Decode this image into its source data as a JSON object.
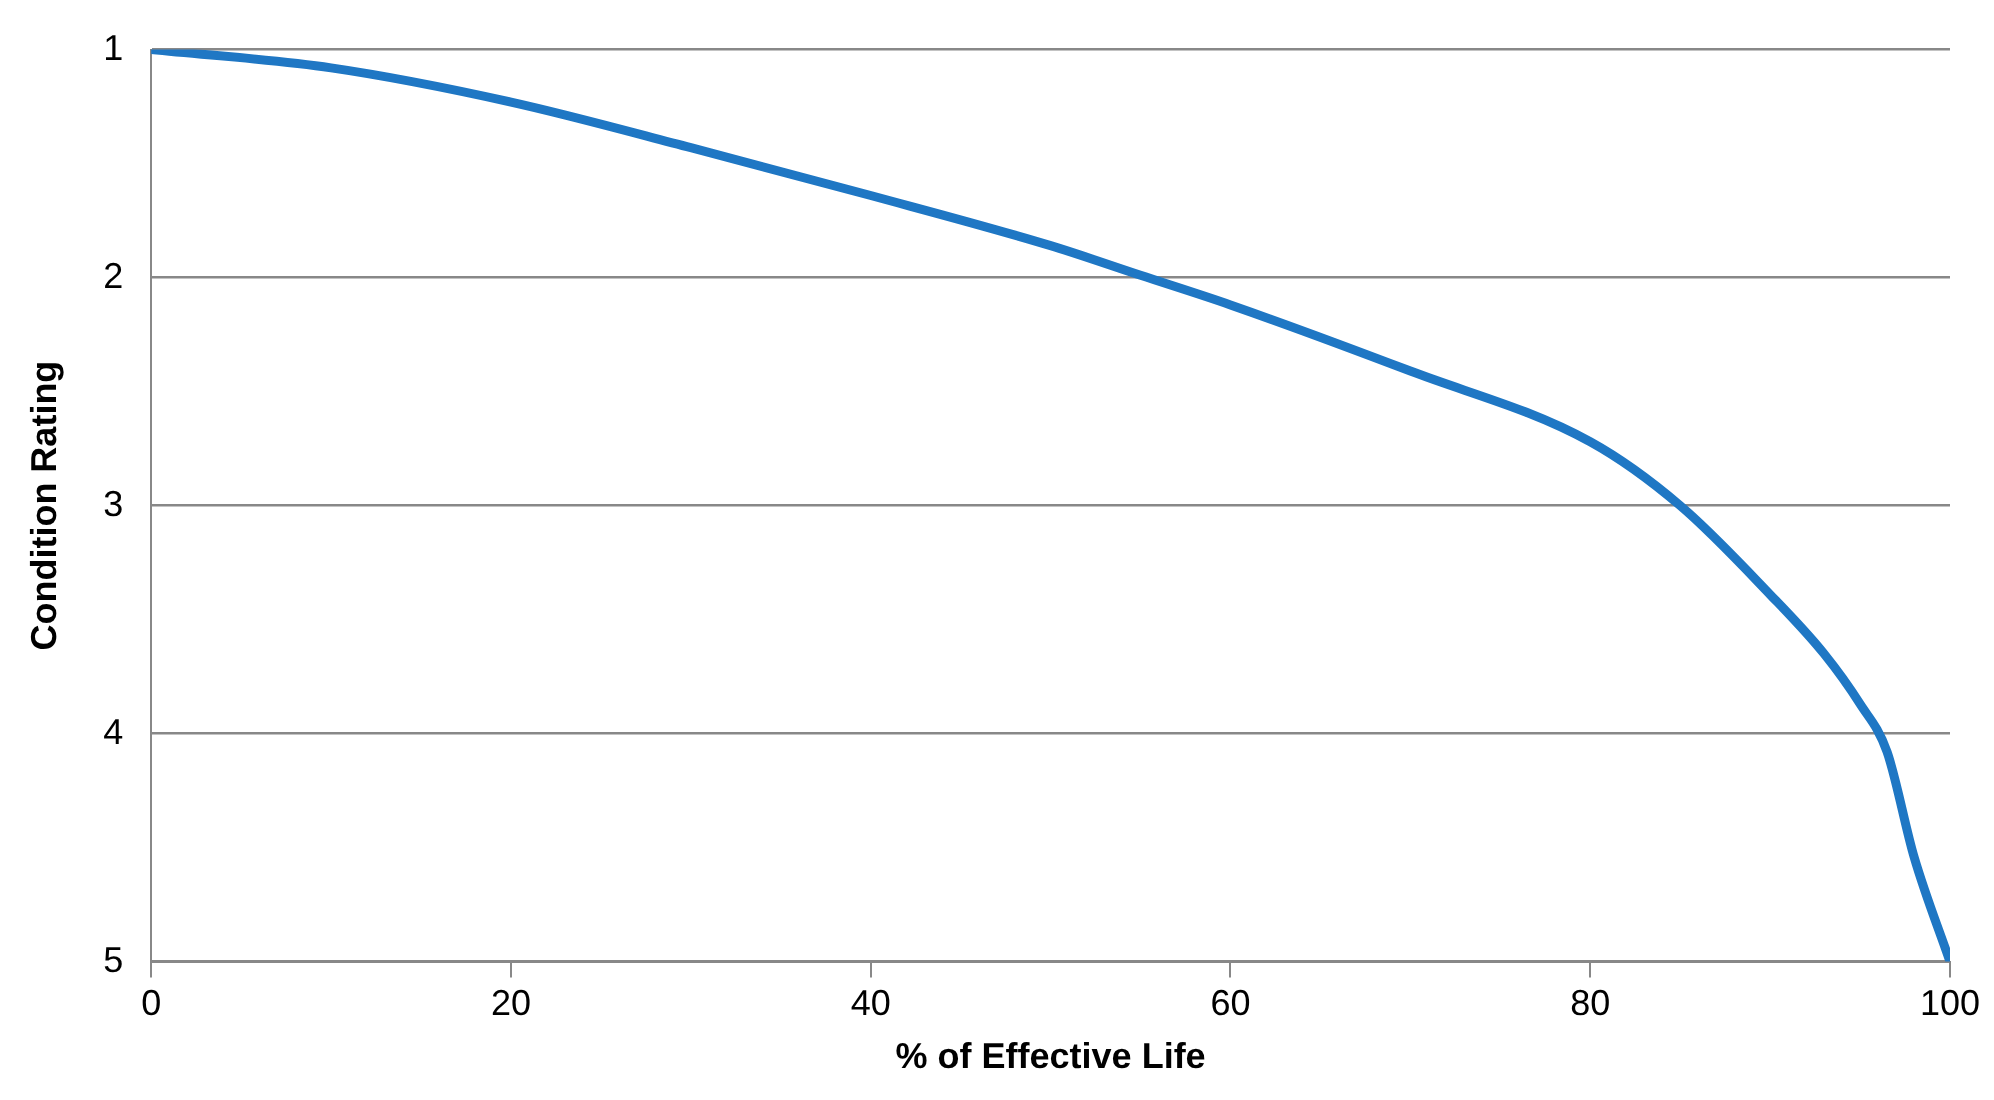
{
  "chart_data": {
    "type": "line",
    "xlabel": "% of Effective Life",
    "ylabel": "Condition Rating",
    "x": [
      0,
      10,
      20,
      30,
      40,
      50,
      55,
      60,
      70,
      80,
      85,
      90,
      93,
      95,
      96.5,
      98,
      100
    ],
    "series": [
      {
        "color": "#1f77c4",
        "values": [
          1,
          1.08,
          1.23,
          1.43,
          1.64,
          1.86,
          1.99,
          2.12,
          2.41,
          2.72,
          3.0,
          3.39,
          3.65,
          3.87,
          4.08,
          4.54,
          5
        ]
      }
    ],
    "xlim": [
      0,
      100
    ],
    "xticks": [
      0,
      20,
      40,
      60,
      80,
      100
    ],
    "ylim": [
      5,
      1
    ],
    "yticks": [
      1,
      2,
      3,
      4,
      5
    ],
    "grid": "y",
    "legend": false,
    "marker": "none",
    "line_style": "solid"
  }
}
